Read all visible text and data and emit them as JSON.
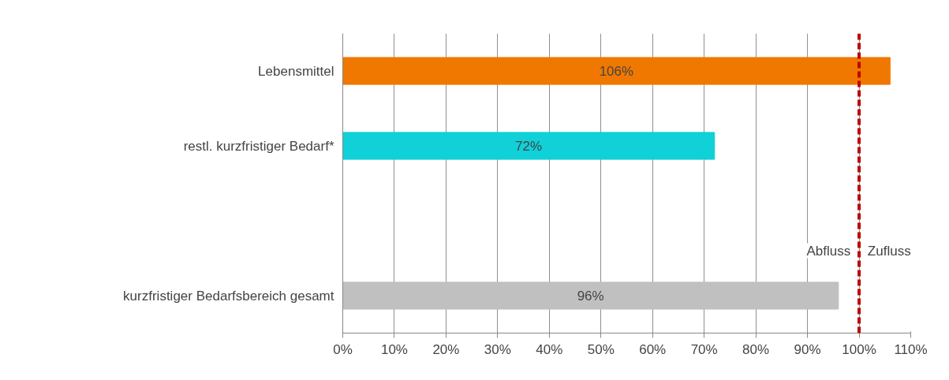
{
  "chart_data": {
    "type": "bar",
    "orientation": "horizontal",
    "categories": [
      "Lebensmittel",
      "restl. kurzfristiger Bedarf*",
      null,
      "kurzfristiger Bedarfsbereich gesamt"
    ],
    "values": [
      106,
      72,
      null,
      96
    ],
    "colors": [
      "#f07800",
      "#10d0d8",
      "#c0c0c0",
      "#c0c0c0"
    ],
    "value_labels": [
      "106%",
      "72%",
      null,
      "96%"
    ],
    "xlim": [
      0,
      110
    ],
    "xticks": [
      {
        "value": 0,
        "label": "0%"
      },
      {
        "value": 10,
        "label": "10%"
      },
      {
        "value": 20,
        "label": "20%"
      },
      {
        "value": 30,
        "label": "30%"
      },
      {
        "value": 40,
        "label": "40%"
      },
      {
        "value": 50,
        "label": "50%"
      },
      {
        "value": 60,
        "label": "60%"
      },
      {
        "value": 70,
        "label": "70%"
      },
      {
        "value": 80,
        "label": "80%"
      },
      {
        "value": 90,
        "label": "90%"
      },
      {
        "value": 100,
        "label": "100%"
      },
      {
        "value": 110,
        "label": "110%"
      }
    ],
    "ref_lines": [
      {
        "axis": "x",
        "value": 100,
        "label": null,
        "color": "#c00000",
        "line_style": "dashed"
      }
    ],
    "annotations": [
      "Abfluss",
      "Zufluss"
    ],
    "grid": "x"
  }
}
